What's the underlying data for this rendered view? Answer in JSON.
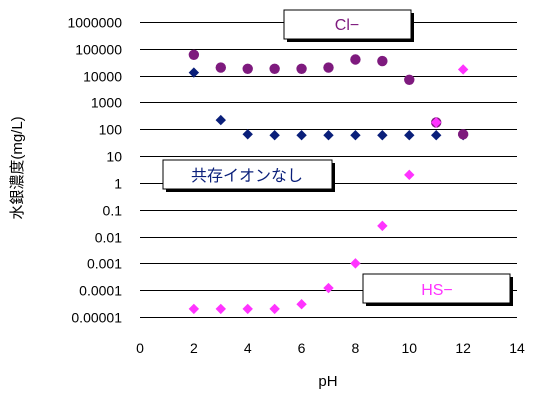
{
  "chart_data": {
    "type": "scatter",
    "xlabel": "pH",
    "ylabel": "水銀濃度(mg/L)",
    "xlim": [
      0,
      14
    ],
    "x_ticks": [
      0,
      2,
      4,
      6,
      8,
      10,
      12,
      14
    ],
    "y_scale": "log",
    "ylim": [
      1e-05,
      1000000
    ],
    "y_ticks": [
      {
        "value": 1e-05,
        "label": "0.00001"
      },
      {
        "value": 0.0001,
        "label": "0.0001"
      },
      {
        "value": 0.001,
        "label": "0.001"
      },
      {
        "value": 0.01,
        "label": "0.01"
      },
      {
        "value": 0.1,
        "label": "0.1"
      },
      {
        "value": 1,
        "label": "1"
      },
      {
        "value": 10,
        "label": "10"
      },
      {
        "value": 100,
        "label": "100"
      },
      {
        "value": 1000,
        "label": "1000"
      },
      {
        "value": 10000,
        "label": "10000"
      },
      {
        "value": 100000,
        "label": "100000"
      },
      {
        "value": 1000000,
        "label": "1000000"
      }
    ],
    "grid": "horizontal",
    "series": [
      {
        "name": "共存イオンなし",
        "marker": "diamond",
        "color": "#0A1F7A",
        "x": [
          2,
          3,
          4,
          5,
          6,
          7,
          8,
          9,
          10,
          11,
          12
        ],
        "y": [
          13000,
          220,
          65,
          60,
          60,
          60,
          60,
          60,
          60,
          60,
          60
        ]
      },
      {
        "name": "Cl−",
        "marker": "circle",
        "color": "#7E1A7E",
        "x": [
          2,
          3,
          4,
          5,
          6,
          7,
          8,
          9,
          10,
          11,
          12
        ],
        "y": [
          60000,
          20000,
          18000,
          18000,
          18000,
          20000,
          40000,
          35000,
          7000,
          180,
          65
        ]
      },
      {
        "name": "HS−",
        "marker": "diamond",
        "color": "#FF33FF",
        "x": [
          2,
          3,
          4,
          5,
          6,
          7,
          8,
          9,
          10,
          11,
          12
        ],
        "y": [
          2e-05,
          2e-05,
          2e-05,
          2e-05,
          3e-05,
          0.00012,
          0.001,
          0.025,
          2,
          180,
          17000
        ]
      }
    ],
    "annotations": [
      {
        "text": "Cl−",
        "color": "#7E1A7E",
        "series": "Cl−"
      },
      {
        "text": "共存イオンなし",
        "color": "#0A1F7A",
        "series": "共存イオンなし"
      },
      {
        "text": "HS−",
        "color": "#FF33FF",
        "series": "HS−"
      }
    ]
  }
}
